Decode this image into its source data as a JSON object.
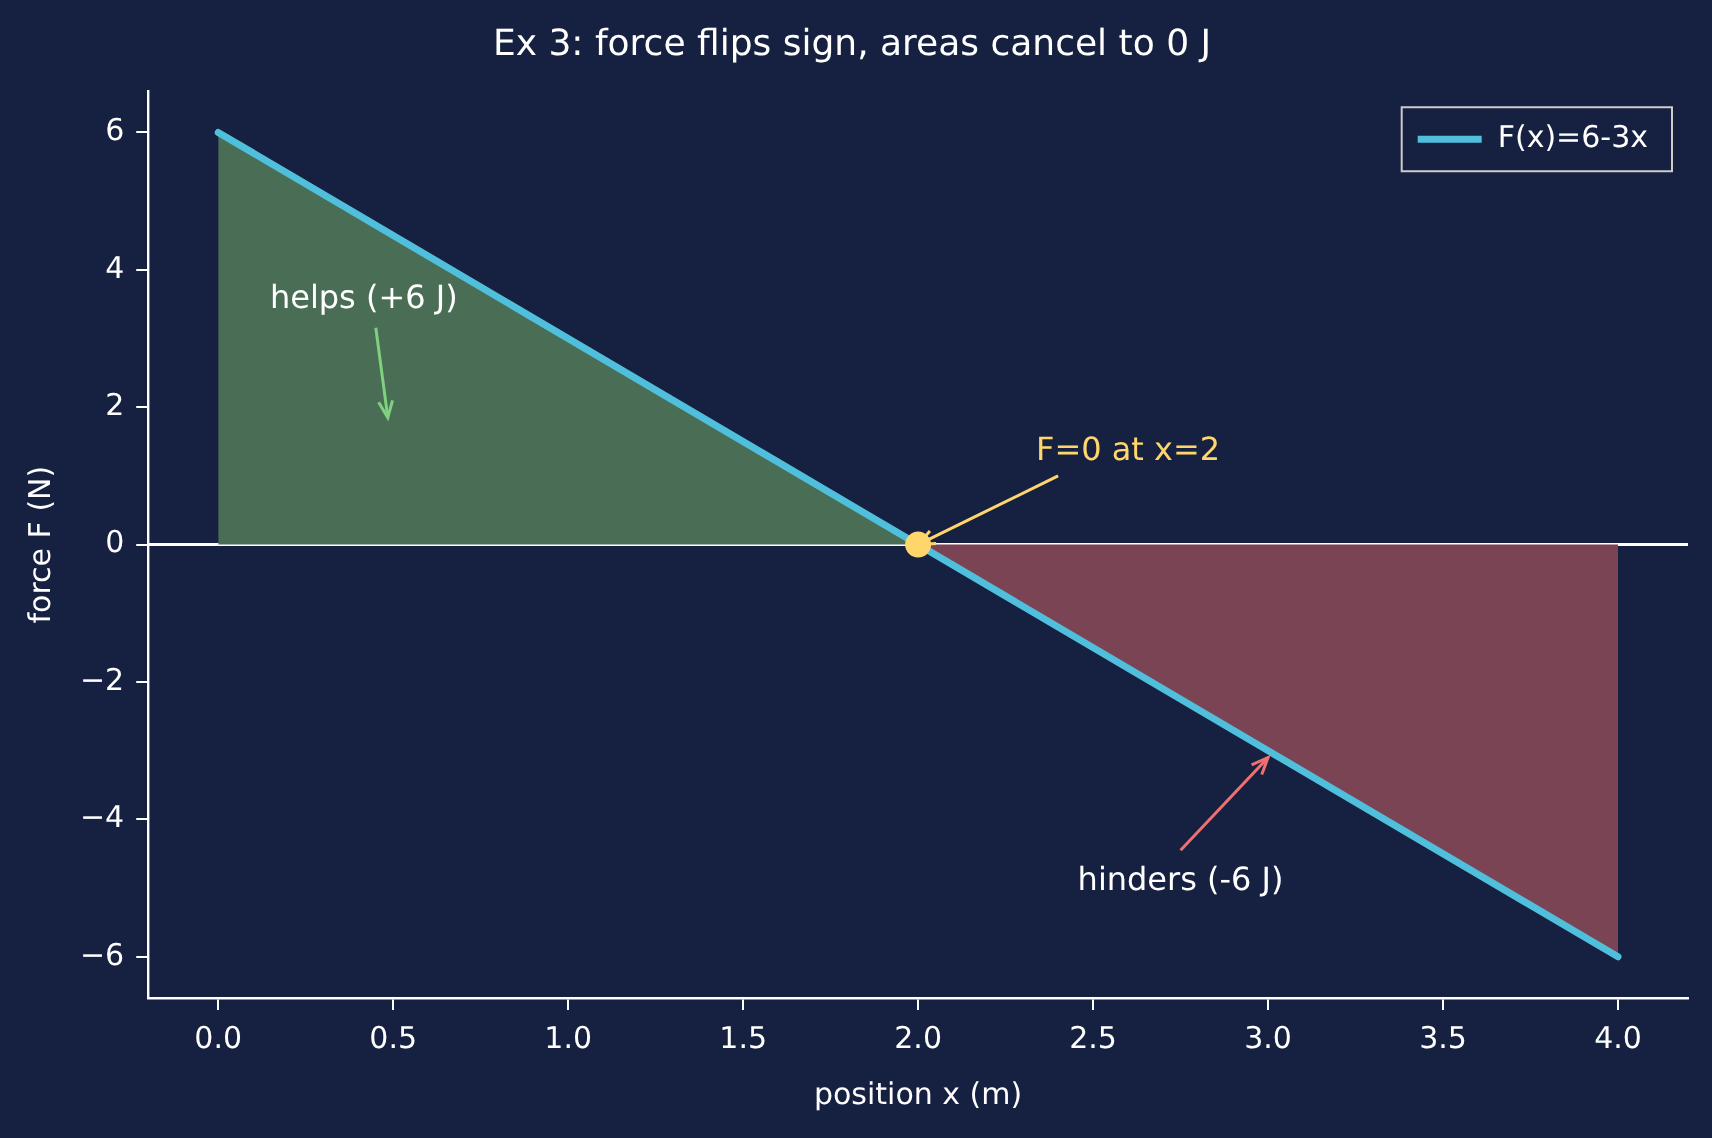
{
  "chart_data": {
    "type": "line",
    "title": "Ex 3: force flips sign, areas cancel to 0 J",
    "xlabel": "position x (m)",
    "ylabel": "force F (N)",
    "xlim": [
      -0.2,
      4.2
    ],
    "ylim": [
      -6.6,
      6.6
    ],
    "xticks": [
      {
        "value": 0,
        "label": "0.0"
      },
      {
        "value": 0.5,
        "label": "0.5"
      },
      {
        "value": 1,
        "label": "1.0"
      },
      {
        "value": 1.5,
        "label": "1.5"
      },
      {
        "value": 2,
        "label": "2.0"
      },
      {
        "value": 2.5,
        "label": "2.5"
      },
      {
        "value": 3,
        "label": "3.0"
      },
      {
        "value": 3.5,
        "label": "3.5"
      },
      {
        "value": 4,
        "label": "4.0"
      }
    ],
    "yticks": [
      {
        "value": -6,
        "label": "−6"
      },
      {
        "value": -4,
        "label": "−4"
      },
      {
        "value": -2,
        "label": "−2"
      },
      0,
      2,
      4,
      6
    ],
    "grid": false,
    "legend": "top right",
    "marker": "none",
    "line_style": "solid",
    "series": [
      {
        "type": "area",
        "color": "#4a6e55",
        "x": [
          0,
          2
        ],
        "values": [
          6,
          0
        ]
      },
      {
        "type": "area",
        "color": "#7a4455",
        "x": [
          2,
          4
        ],
        "values": [
          0,
          -6
        ]
      },
      {
        "name": "F(x)=6-3x",
        "color": "#4fbfdc",
        "x": [
          0,
          4
        ],
        "values": [
          6,
          -6
        ]
      },
      {
        "type": "scatter",
        "color": "#ffd66b",
        "marker": "circle",
        "x": [
          2
        ],
        "values": [
          0
        ]
      }
    ],
    "ref_lines": [
      {
        "axis": "y",
        "value": 0,
        "color": "#ffffff"
      }
    ],
    "annotations": [
      "helps (+6 J)",
      {
        "text": "F=0 at x=2",
        "x": 2,
        "y": 0
      },
      {
        "text": "hinders (-6 J)",
        "x": 3,
        "y": -3.1
      }
    ]
  }
}
